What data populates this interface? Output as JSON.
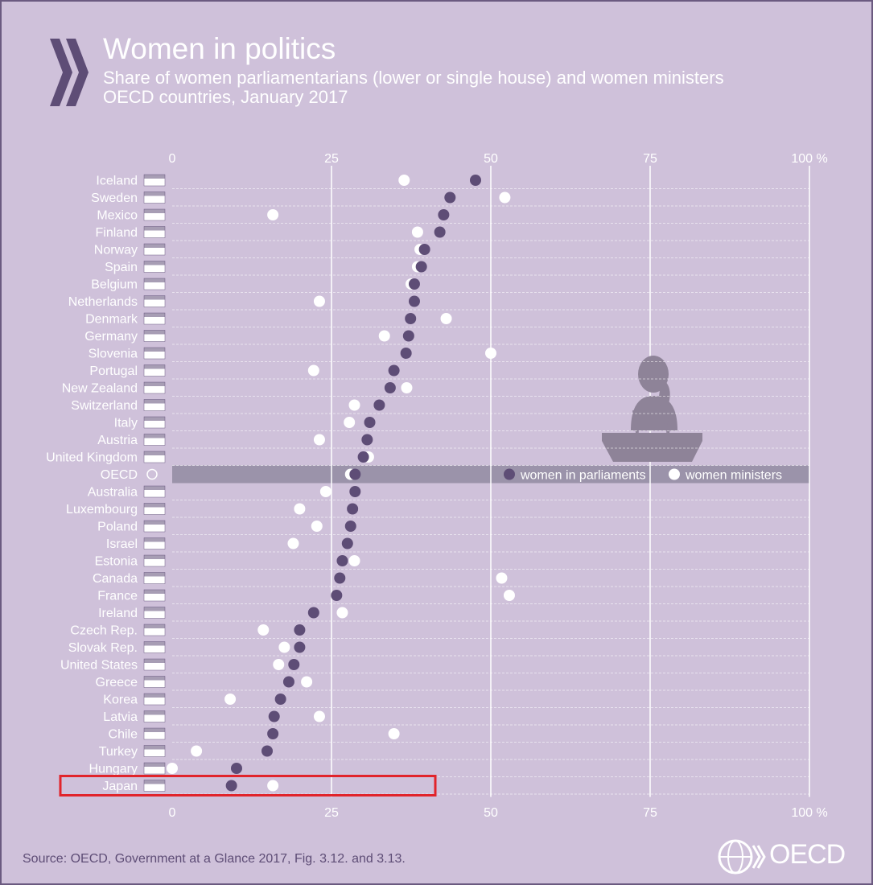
{
  "header": {
    "title": "Women in politics",
    "subtitle_line1": "Share of women parliamentarians (lower or single house) and women ministers",
    "subtitle_line2": "OECD countries, January 2017"
  },
  "source": "Source: OECD, Government at a Glance 2017, Fig. 3.12. and 3.13.",
  "logo_text": "OECD",
  "colors": {
    "background": "#cfc1da",
    "parliament_dot": "#5e4d76",
    "minister_dot": "#ffffff",
    "highlight_box": "#e1242b",
    "oecd_band": "#9b93aa"
  },
  "chart_data": {
    "type": "scatter",
    "title": "Women in politics",
    "xlim": [
      0,
      100
    ],
    "x_ticks": [
      "0",
      "25",
      "50",
      "75",
      "100 %"
    ],
    "legend": {
      "position": "inside-right on OECD row",
      "entries": [
        "women in parliaments",
        "women ministers"
      ]
    },
    "series": [
      {
        "name": "women in parliaments",
        "color": "#5e4d76"
      },
      {
        "name": "women ministers",
        "color": "#ffffff"
      }
    ],
    "highlighted_country": "Japan",
    "countries": [
      {
        "name": "Iceland",
        "parliament": 47.6,
        "ministers": 36.4
      },
      {
        "name": "Sweden",
        "parliament": 43.6,
        "ministers": 52.2
      },
      {
        "name": "Mexico",
        "parliament": 42.6,
        "ministers": 15.8
      },
      {
        "name": "Finland",
        "parliament": 42.0,
        "ministers": 38.5
      },
      {
        "name": "Norway",
        "parliament": 39.6,
        "ministers": 38.9
      },
      {
        "name": "Spain",
        "parliament": 39.1,
        "ministers": 38.5
      },
      {
        "name": "Belgium",
        "parliament": 38.0,
        "ministers": 37.5
      },
      {
        "name": "Netherlands",
        "parliament": 38.0,
        "ministers": 23.1
      },
      {
        "name": "Denmark",
        "parliament": 37.4,
        "ministers": 43.0
      },
      {
        "name": "Germany",
        "parliament": 37.1,
        "ministers": 33.3
      },
      {
        "name": "Slovenia",
        "parliament": 36.7,
        "ministers": 50.0
      },
      {
        "name": "Portugal",
        "parliament": 34.8,
        "ministers": 22.2
      },
      {
        "name": "New Zealand",
        "parliament": 34.2,
        "ministers": 36.8
      },
      {
        "name": "Switzerland",
        "parliament": 32.5,
        "ministers": 28.6
      },
      {
        "name": "Italy",
        "parliament": 31.0,
        "ministers": 27.8
      },
      {
        "name": "Austria",
        "parliament": 30.6,
        "ministers": 23.1
      },
      {
        "name": "United Kingdom",
        "parliament": 30.0,
        "ministers": 30.8
      },
      {
        "name": "OECD",
        "parliament": 28.7,
        "ministers": 28.0
      },
      {
        "name": "Australia",
        "parliament": 28.7,
        "ministers": 24.1
      },
      {
        "name": "Luxembourg",
        "parliament": 28.3,
        "ministers": 20.0
      },
      {
        "name": "Poland",
        "parliament": 28.0,
        "ministers": 22.7
      },
      {
        "name": "Israel",
        "parliament": 27.5,
        "ministers": 19.0
      },
      {
        "name": "Estonia",
        "parliament": 26.7,
        "ministers": 28.6
      },
      {
        "name": "Canada",
        "parliament": 26.3,
        "ministers": 51.7
      },
      {
        "name": "France",
        "parliament": 25.8,
        "ministers": 52.9
      },
      {
        "name": "Ireland",
        "parliament": 22.2,
        "ministers": 26.7
      },
      {
        "name": "Czech Rep.",
        "parliament": 20.0,
        "ministers": 14.3
      },
      {
        "name": "Slovak Rep.",
        "parliament": 20.0,
        "ministers": 17.6
      },
      {
        "name": "United States",
        "parliament": 19.1,
        "ministers": 16.7
      },
      {
        "name": "Greece",
        "parliament": 18.3,
        "ministers": 21.1
      },
      {
        "name": "Korea",
        "parliament": 17.0,
        "ministers": 9.1
      },
      {
        "name": "Latvia",
        "parliament": 16.0,
        "ministers": 23.1
      },
      {
        "name": "Chile",
        "parliament": 15.8,
        "ministers": 34.8
      },
      {
        "name": "Turkey",
        "parliament": 14.9,
        "ministers": 3.8
      },
      {
        "name": "Hungary",
        "parliament": 10.1,
        "ministers": 0.0
      },
      {
        "name": "Japan",
        "parliament": 9.3,
        "ministers": 15.8
      }
    ]
  }
}
